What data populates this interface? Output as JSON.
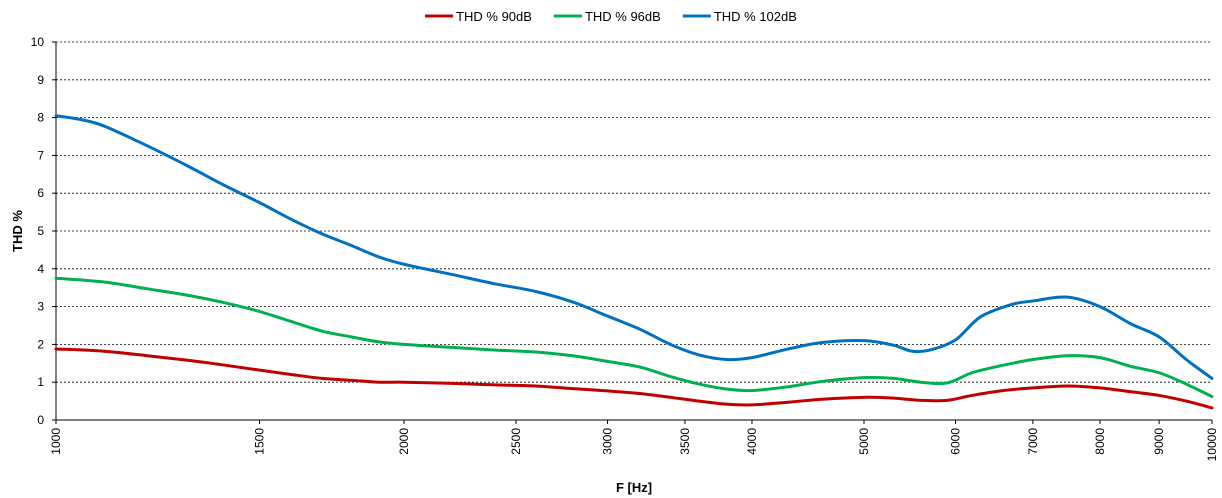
{
  "chart_data": {
    "type": "line",
    "title": "",
    "xlabel": "F [Hz]",
    "ylabel": "THD %",
    "x_scale": "log",
    "xlim": [
      1000,
      10000
    ],
    "ylim": [
      0,
      10
    ],
    "x_ticks": [
      1000,
      1500,
      2000,
      2500,
      3000,
      3500,
      4000,
      5000,
      6000,
      7000,
      8000,
      9000,
      10000
    ],
    "y_ticks": [
      0,
      1,
      2,
      3,
      4,
      5,
      6,
      7,
      8,
      9,
      10
    ],
    "grid": true,
    "legend_position": "top",
    "series": [
      {
        "name": "THD % 90dB",
        "color": "#c00000",
        "points": [
          [
            1000,
            1.88
          ],
          [
            1100,
            1.82
          ],
          [
            1200,
            1.7
          ],
          [
            1300,
            1.58
          ],
          [
            1400,
            1.45
          ],
          [
            1500,
            1.32
          ],
          [
            1600,
            1.2
          ],
          [
            1700,
            1.1
          ],
          [
            1800,
            1.05
          ],
          [
            1900,
            1.0
          ],
          [
            2000,
            1.0
          ],
          [
            2200,
            0.97
          ],
          [
            2400,
            0.93
          ],
          [
            2600,
            0.9
          ],
          [
            2800,
            0.83
          ],
          [
            3000,
            0.77
          ],
          [
            3200,
            0.7
          ],
          [
            3400,
            0.6
          ],
          [
            3600,
            0.5
          ],
          [
            3800,
            0.42
          ],
          [
            4000,
            0.4
          ],
          [
            4300,
            0.47
          ],
          [
            4600,
            0.55
          ],
          [
            5000,
            0.6
          ],
          [
            5300,
            0.58
          ],
          [
            5600,
            0.52
          ],
          [
            5900,
            0.52
          ],
          [
            6200,
            0.65
          ],
          [
            6600,
            0.78
          ],
          [
            7000,
            0.85
          ],
          [
            7500,
            0.9
          ],
          [
            8000,
            0.85
          ],
          [
            8500,
            0.75
          ],
          [
            9000,
            0.65
          ],
          [
            9500,
            0.5
          ],
          [
            10000,
            0.32
          ]
        ]
      },
      {
        "name": "THD % 96dB",
        "color": "#00b050",
        "points": [
          [
            1000,
            3.75
          ],
          [
            1100,
            3.65
          ],
          [
            1200,
            3.47
          ],
          [
            1300,
            3.3
          ],
          [
            1400,
            3.1
          ],
          [
            1500,
            2.87
          ],
          [
            1600,
            2.6
          ],
          [
            1700,
            2.35
          ],
          [
            1800,
            2.2
          ],
          [
            1900,
            2.07
          ],
          [
            2000,
            2.0
          ],
          [
            2200,
            1.92
          ],
          [
            2400,
            1.85
          ],
          [
            2600,
            1.8
          ],
          [
            2800,
            1.7
          ],
          [
            3000,
            1.55
          ],
          [
            3200,
            1.4
          ],
          [
            3400,
            1.15
          ],
          [
            3600,
            0.95
          ],
          [
            3800,
            0.82
          ],
          [
            4000,
            0.78
          ],
          [
            4300,
            0.88
          ],
          [
            4600,
            1.02
          ],
          [
            5000,
            1.12
          ],
          [
            5300,
            1.1
          ],
          [
            5600,
            1.0
          ],
          [
            5900,
            0.98
          ],
          [
            6200,
            1.25
          ],
          [
            6600,
            1.45
          ],
          [
            7000,
            1.6
          ],
          [
            7500,
            1.7
          ],
          [
            8000,
            1.65
          ],
          [
            8500,
            1.42
          ],
          [
            9000,
            1.25
          ],
          [
            9500,
            0.95
          ],
          [
            10000,
            0.62
          ]
        ]
      },
      {
        "name": "THD % 102dB",
        "color": "#0070c0",
        "points": [
          [
            1000,
            8.05
          ],
          [
            1050,
            7.95
          ],
          [
            1100,
            7.78
          ],
          [
            1200,
            7.25
          ],
          [
            1300,
            6.72
          ],
          [
            1400,
            6.2
          ],
          [
            1500,
            5.75
          ],
          [
            1600,
            5.3
          ],
          [
            1700,
            4.92
          ],
          [
            1800,
            4.62
          ],
          [
            1900,
            4.32
          ],
          [
            2000,
            4.12
          ],
          [
            2200,
            3.85
          ],
          [
            2400,
            3.6
          ],
          [
            2600,
            3.4
          ],
          [
            2800,
            3.12
          ],
          [
            3000,
            2.75
          ],
          [
            3200,
            2.4
          ],
          [
            3400,
            2.0
          ],
          [
            3600,
            1.72
          ],
          [
            3800,
            1.6
          ],
          [
            4000,
            1.65
          ],
          [
            4300,
            1.88
          ],
          [
            4600,
            2.05
          ],
          [
            5000,
            2.1
          ],
          [
            5300,
            1.98
          ],
          [
            5500,
            1.82
          ],
          [
            5700,
            1.85
          ],
          [
            6000,
            2.12
          ],
          [
            6300,
            2.72
          ],
          [
            6700,
            3.05
          ],
          [
            7000,
            3.15
          ],
          [
            7500,
            3.25
          ],
          [
            8000,
            3.0
          ],
          [
            8500,
            2.55
          ],
          [
            9000,
            2.2
          ],
          [
            9500,
            1.6
          ],
          [
            10000,
            1.1
          ]
        ]
      }
    ]
  }
}
